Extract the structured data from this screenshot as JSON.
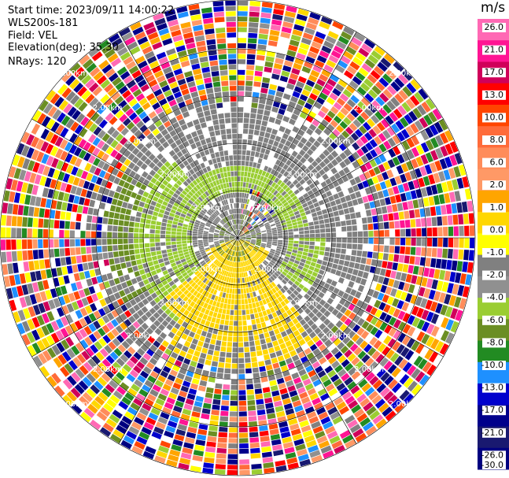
{
  "header": {
    "start_time": "Start time: 2023/09/11 14:00:22",
    "instrument": "WLS200s-181",
    "field": "Field: VEL",
    "elevation": "Elevation(deg): 35.30",
    "nrays": "NRays: 120"
  },
  "colorbar": {
    "unit": "m/s",
    "ticks": [
      "26.0",
      "21.0",
      "17.0",
      "13.0",
      "10.0",
      "8.0",
      "6.0",
      "2.0",
      "1.0",
      "0.0",
      "-1.0",
      "-2.0",
      "-4.0",
      "-6.0",
      "-8.0",
      "-10.0",
      "-13.0",
      "-17.0",
      "-21.0",
      "-26.0",
      "-30.0"
    ],
    "colors": [
      "#ff69b4",
      "#ff1493",
      "#d0005a",
      "#ff0000",
      "#ff4500",
      "#ff6b3a",
      "#ff8c5a",
      "#ff9966",
      "#ffa500",
      "#ffd700",
      "#ffff00",
      "#808080",
      "#909090",
      "#9acd32",
      "#6b8e23",
      "#228b22",
      "#1e90ff",
      "#0000cd",
      "#00008b",
      "#191970",
      "#000080"
    ]
  },
  "chart_data": {
    "type": "heatmap",
    "subtype": "polar PPI",
    "field": "VEL",
    "units": "m/s",
    "nrays": 120,
    "range_ring_labels": [
      "2.00km",
      "4.00km",
      "6.00km",
      "8.00km",
      "10.00km"
    ],
    "shown_ring_label": "2.00km",
    "value_range": [
      -30.0,
      26.0
    ],
    "pattern": {
      "inner_zone": "mostly near-zero (gray) with green (~-2 m/s) arcs and a yellow (~1 to 2 m/s) arc toward the south",
      "outer_zone": "noise: random values across full color scale"
    }
  }
}
